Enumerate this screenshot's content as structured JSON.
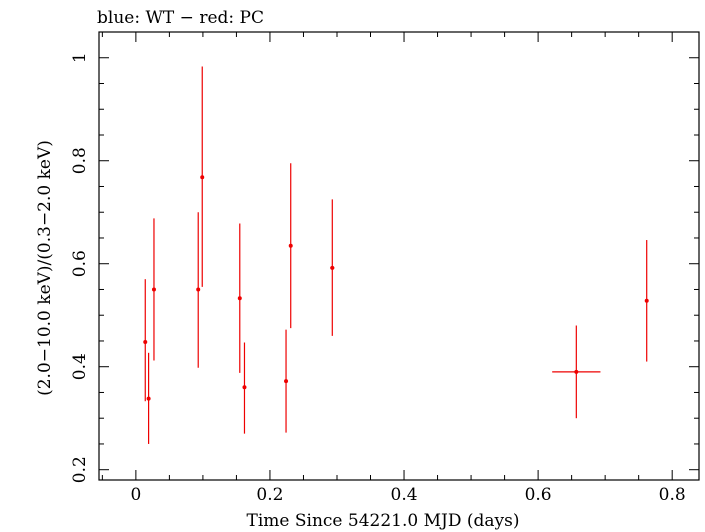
{
  "chart_data": {
    "type": "scatter",
    "title": "blue: WT − red: PC",
    "xlabel": "Time Since 54221.0 MJD (days)",
    "ylabel": "(2.0−10.0 keV)/(0.3−2.0 keV)",
    "xlim": [
      -0.055,
      0.84
    ],
    "ylim": [
      0.18,
      1.05
    ],
    "xticks": [
      0,
      0.2,
      0.4,
      0.6,
      0.8
    ],
    "xtick_labels": [
      "0",
      "0.2",
      "0.4",
      "0.6",
      "0.8"
    ],
    "yticks": [
      0.2,
      0.4,
      0.6,
      0.8,
      1.0
    ],
    "ytick_labels": [
      "0.2",
      "0.4",
      "0.6",
      "0.8",
      "1"
    ],
    "grid": false,
    "series": [
      {
        "color": "#ee0000",
        "points": [
          {
            "x": 0.014,
            "y": 0.448,
            "ylo": 0.333,
            "yhi": 0.57,
            "xerr": 0.002
          },
          {
            "x": 0.019,
            "y": 0.338,
            "ylo": 0.25,
            "yhi": 0.427,
            "xerr": 0.002
          },
          {
            "x": 0.027,
            "y": 0.55,
            "ylo": 0.412,
            "yhi": 0.688,
            "xerr": 0.002
          },
          {
            "x": 0.093,
            "y": 0.55,
            "ylo": 0.398,
            "yhi": 0.7,
            "xerr": 0.002
          },
          {
            "x": 0.099,
            "y": 0.768,
            "ylo": 0.555,
            "yhi": 0.983,
            "xerr": 0.002
          },
          {
            "x": 0.155,
            "y": 0.533,
            "ylo": 0.388,
            "yhi": 0.678,
            "xerr": 0.002
          },
          {
            "x": 0.162,
            "y": 0.36,
            "ylo": 0.27,
            "yhi": 0.447,
            "xerr": 0.002
          },
          {
            "x": 0.224,
            "y": 0.372,
            "ylo": 0.272,
            "yhi": 0.472,
            "xerr": 0.002
          },
          {
            "x": 0.231,
            "y": 0.635,
            "ylo": 0.475,
            "yhi": 0.795,
            "xerr": 0.002
          },
          {
            "x": 0.293,
            "y": 0.592,
            "ylo": 0.46,
            "yhi": 0.725,
            "xerr": 0.003
          },
          {
            "x": 0.657,
            "y": 0.39,
            "ylo": 0.3,
            "yhi": 0.48,
            "xerr": 0.036
          },
          {
            "x": 0.762,
            "y": 0.528,
            "ylo": 0.41,
            "yhi": 0.646,
            "xerr": 0.002
          }
        ]
      }
    ]
  }
}
